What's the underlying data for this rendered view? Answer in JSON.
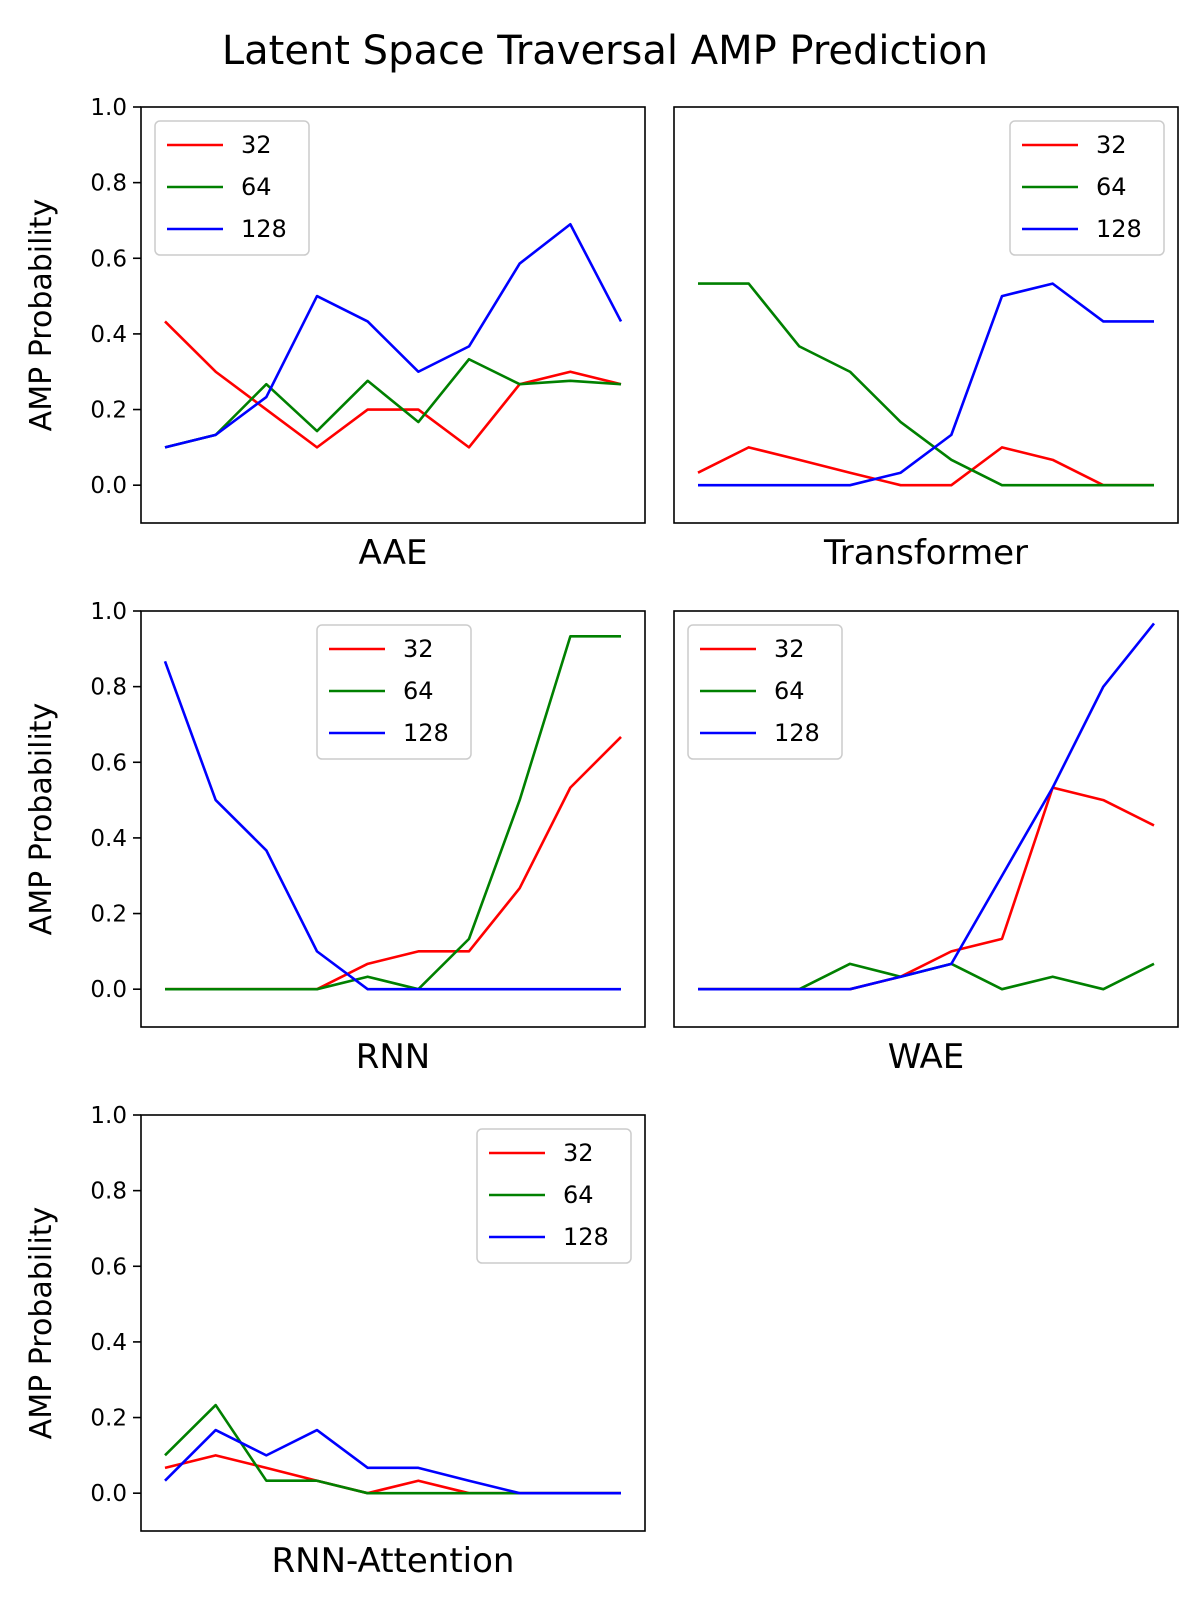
{
  "suptitle": "Latent Space Traversal AMP Prediction",
  "colors": {
    "32": "#ff0000",
    "64": "#008000",
    "128": "#0000ff"
  },
  "chart_data": [
    {
      "type": "line",
      "xlabel": "AAE",
      "ylabel": "AMP Probability",
      "ylim": [
        -0.1,
        1.0
      ],
      "yticks": [
        "0.0",
        "0.2",
        "0.4",
        "0.6",
        "0.8",
        "1.0"
      ],
      "legend_position": "upper-left",
      "x": [
        0,
        1,
        2,
        3,
        4,
        5,
        6,
        7,
        8,
        9
      ],
      "series": [
        {
          "name": "32",
          "values": [
            0.433,
            0.3,
            0.2,
            0.1,
            0.2,
            0.2,
            0.1,
            0.267,
            0.3,
            0.267
          ]
        },
        {
          "name": "64",
          "values": [
            0.1,
            0.133,
            0.267,
            0.143,
            0.276,
            0.167,
            0.333,
            0.267,
            0.276,
            0.267
          ]
        },
        {
          "name": "128",
          "values": [
            0.1,
            0.133,
            0.233,
            0.5,
            0.433,
            0.3,
            0.367,
            0.586,
            0.69,
            0.433
          ]
        }
      ]
    },
    {
      "type": "line",
      "xlabel": "Transformer",
      "ylabel": "",
      "ylim": [
        -0.1,
        1.0
      ],
      "yticks": [],
      "legend_position": "upper-right",
      "x": [
        0,
        1,
        2,
        3,
        4,
        5,
        6,
        7,
        8,
        9
      ],
      "series": [
        {
          "name": "32",
          "values": [
            0.033,
            0.1,
            0.067,
            0.033,
            0.0,
            0.0,
            0.1,
            0.067,
            0.0,
            0.0
          ]
        },
        {
          "name": "64",
          "values": [
            0.533,
            0.533,
            0.367,
            0.3,
            0.167,
            0.067,
            0.0,
            0.0,
            0.0,
            0.0
          ]
        },
        {
          "name": "128",
          "values": [
            0.0,
            0.0,
            0.0,
            0.0,
            0.033,
            0.133,
            0.5,
            0.533,
            0.433,
            0.433
          ]
        }
      ]
    },
    {
      "type": "line",
      "xlabel": "RNN",
      "ylabel": "AMP Probability",
      "ylim": [
        -0.1,
        1.0
      ],
      "yticks": [
        "0.0",
        "0.2",
        "0.4",
        "0.6",
        "0.8",
        "1.0"
      ],
      "legend_position": "upper-center",
      "x": [
        0,
        1,
        2,
        3,
        4,
        5,
        6,
        7,
        8,
        9
      ],
      "series": [
        {
          "name": "32",
          "values": [
            0.0,
            0.0,
            0.0,
            0.0,
            0.067,
            0.1,
            0.1,
            0.267,
            0.533,
            0.667
          ]
        },
        {
          "name": "64",
          "values": [
            0.0,
            0.0,
            0.0,
            0.0,
            0.033,
            0.0,
            0.133,
            0.5,
            0.933,
            0.933
          ]
        },
        {
          "name": "128",
          "values": [
            0.867,
            0.5,
            0.367,
            0.1,
            0.0,
            0.0,
            0.0,
            0.0,
            0.0,
            0.0
          ]
        }
      ]
    },
    {
      "type": "line",
      "xlabel": "WAE",
      "ylabel": "",
      "ylim": [
        -0.1,
        1.0
      ],
      "yticks": [],
      "legend_position": "upper-left",
      "x": [
        0,
        1,
        2,
        3,
        4,
        5,
        6,
        7,
        8,
        9
      ],
      "series": [
        {
          "name": "32",
          "values": [
            0.0,
            0.0,
            0.0,
            0.0,
            0.033,
            0.1,
            0.133,
            0.533,
            0.5,
            0.433
          ]
        },
        {
          "name": "64",
          "values": [
            0.0,
            0.0,
            0.0,
            0.067,
            0.033,
            0.067,
            0.0,
            0.033,
            0.0,
            0.067
          ]
        },
        {
          "name": "128",
          "values": [
            0.0,
            0.0,
            0.0,
            0.0,
            0.033,
            0.067,
            0.3,
            0.533,
            0.8,
            0.967
          ]
        }
      ]
    },
    {
      "type": "line",
      "xlabel": "RNN-Attention",
      "ylabel": "AMP Probability",
      "ylim": [
        -0.1,
        1.0
      ],
      "yticks": [
        "0.0",
        "0.2",
        "0.4",
        "0.6",
        "0.8",
        "1.0"
      ],
      "legend_position": "upper-right",
      "x": [
        0,
        1,
        2,
        3,
        4,
        5,
        6,
        7,
        8,
        9
      ],
      "series": [
        {
          "name": "32",
          "values": [
            0.067,
            0.1,
            0.067,
            0.033,
            0.0,
            0.033,
            0.0,
            0.0,
            0.0,
            0.0
          ]
        },
        {
          "name": "64",
          "values": [
            0.1,
            0.233,
            0.033,
            0.033,
            0.0,
            0.0,
            0.0,
            0.0,
            0.0,
            0.0
          ]
        },
        {
          "name": "128",
          "values": [
            0.033,
            0.167,
            0.1,
            0.167,
            0.067,
            0.067,
            0.033,
            0.0,
            0.0,
            0.0
          ]
        }
      ]
    }
  ]
}
